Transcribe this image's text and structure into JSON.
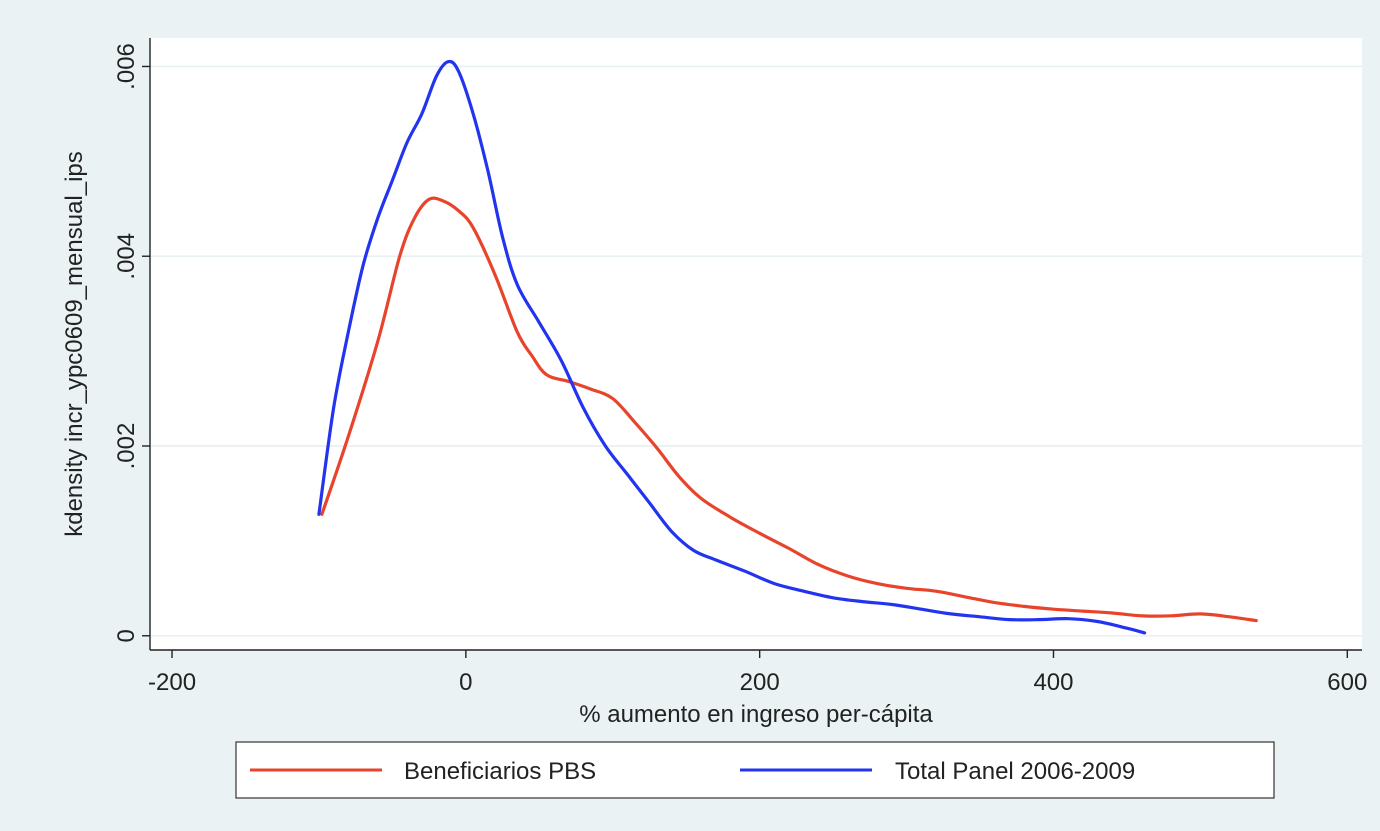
{
  "chart_data": {
    "type": "line",
    "xlabel": "% aumento en ingreso per-cápita",
    "ylabel": "kdensity incr_ypc0609_mensual_ips",
    "xlim": [
      -215,
      610
    ],
    "ylim": [
      -0.00015,
      0.0063
    ],
    "x_ticks": [
      -200,
      0,
      200,
      400,
      600
    ],
    "x_tick_labels": [
      "-200",
      "0",
      "200",
      "400",
      "600"
    ],
    "y_ticks": [
      0,
      0.002,
      0.004,
      0.006
    ],
    "y_tick_labels": [
      "0",
      ".002",
      ".004",
      ".006"
    ],
    "grid": "horizontal",
    "legend_position": "bottom",
    "series": [
      {
        "name": "Beneficiarios PBS",
        "color": "#e8442c",
        "points": [
          [
            -98,
            0.00128
          ],
          [
            -80,
            0.0021
          ],
          [
            -60,
            0.0031
          ],
          [
            -45,
            0.004
          ],
          [
            -35,
            0.0044
          ],
          [
            -25,
            0.0046
          ],
          [
            -15,
            0.00458
          ],
          [
            -5,
            0.00448
          ],
          [
            5,
            0.0043
          ],
          [
            20,
            0.0038
          ],
          [
            35,
            0.0032
          ],
          [
            45,
            0.00295
          ],
          [
            55,
            0.00275
          ],
          [
            70,
            0.00268
          ],
          [
            85,
            0.0026
          ],
          [
            100,
            0.0025
          ],
          [
            115,
            0.00225
          ],
          [
            130,
            0.00198
          ],
          [
            145,
            0.00168
          ],
          [
            160,
            0.00145
          ],
          [
            180,
            0.00125
          ],
          [
            200,
            0.00108
          ],
          [
            220,
            0.00092
          ],
          [
            240,
            0.00075
          ],
          [
            260,
            0.00063
          ],
          [
            280,
            0.00055
          ],
          [
            300,
            0.0005
          ],
          [
            320,
            0.00047
          ],
          [
            340,
            0.00041
          ],
          [
            360,
            0.00035
          ],
          [
            380,
            0.00031
          ],
          [
            400,
            0.00028
          ],
          [
            420,
            0.00026
          ],
          [
            440,
            0.00024
          ],
          [
            460,
            0.00021
          ],
          [
            480,
            0.00021
          ],
          [
            500,
            0.00023
          ],
          [
            520,
            0.0002
          ],
          [
            538,
            0.00016
          ]
        ]
      },
      {
        "name": "Total Panel 2006-2009",
        "color": "#2234f0",
        "points": [
          [
            -100,
            0.00128
          ],
          [
            -90,
            0.0024
          ],
          [
            -80,
            0.0032
          ],
          [
            -70,
            0.0039
          ],
          [
            -60,
            0.0044
          ],
          [
            -50,
            0.0048
          ],
          [
            -40,
            0.0052
          ],
          [
            -30,
            0.0055
          ],
          [
            -20,
            0.0059
          ],
          [
            -12,
            0.00605
          ],
          [
            -5,
            0.00595
          ],
          [
            5,
            0.0055
          ],
          [
            15,
            0.0049
          ],
          [
            25,
            0.0042
          ],
          [
            35,
            0.0037
          ],
          [
            50,
            0.0033
          ],
          [
            65,
            0.0029
          ],
          [
            80,
            0.0024
          ],
          [
            95,
            0.002
          ],
          [
            110,
            0.0017
          ],
          [
            125,
            0.0014
          ],
          [
            140,
            0.0011
          ],
          [
            155,
            0.0009
          ],
          [
            170,
            0.0008
          ],
          [
            190,
            0.00068
          ],
          [
            210,
            0.00055
          ],
          [
            230,
            0.00047
          ],
          [
            250,
            0.0004
          ],
          [
            270,
            0.00036
          ],
          [
            290,
            0.00033
          ],
          [
            310,
            0.00028
          ],
          [
            330,
            0.00023
          ],
          [
            350,
            0.0002
          ],
          [
            370,
            0.00017
          ],
          [
            390,
            0.00017
          ],
          [
            410,
            0.00018
          ],
          [
            430,
            0.00015
          ],
          [
            450,
            8e-05
          ],
          [
            462,
            3e-05
          ]
        ]
      }
    ]
  }
}
